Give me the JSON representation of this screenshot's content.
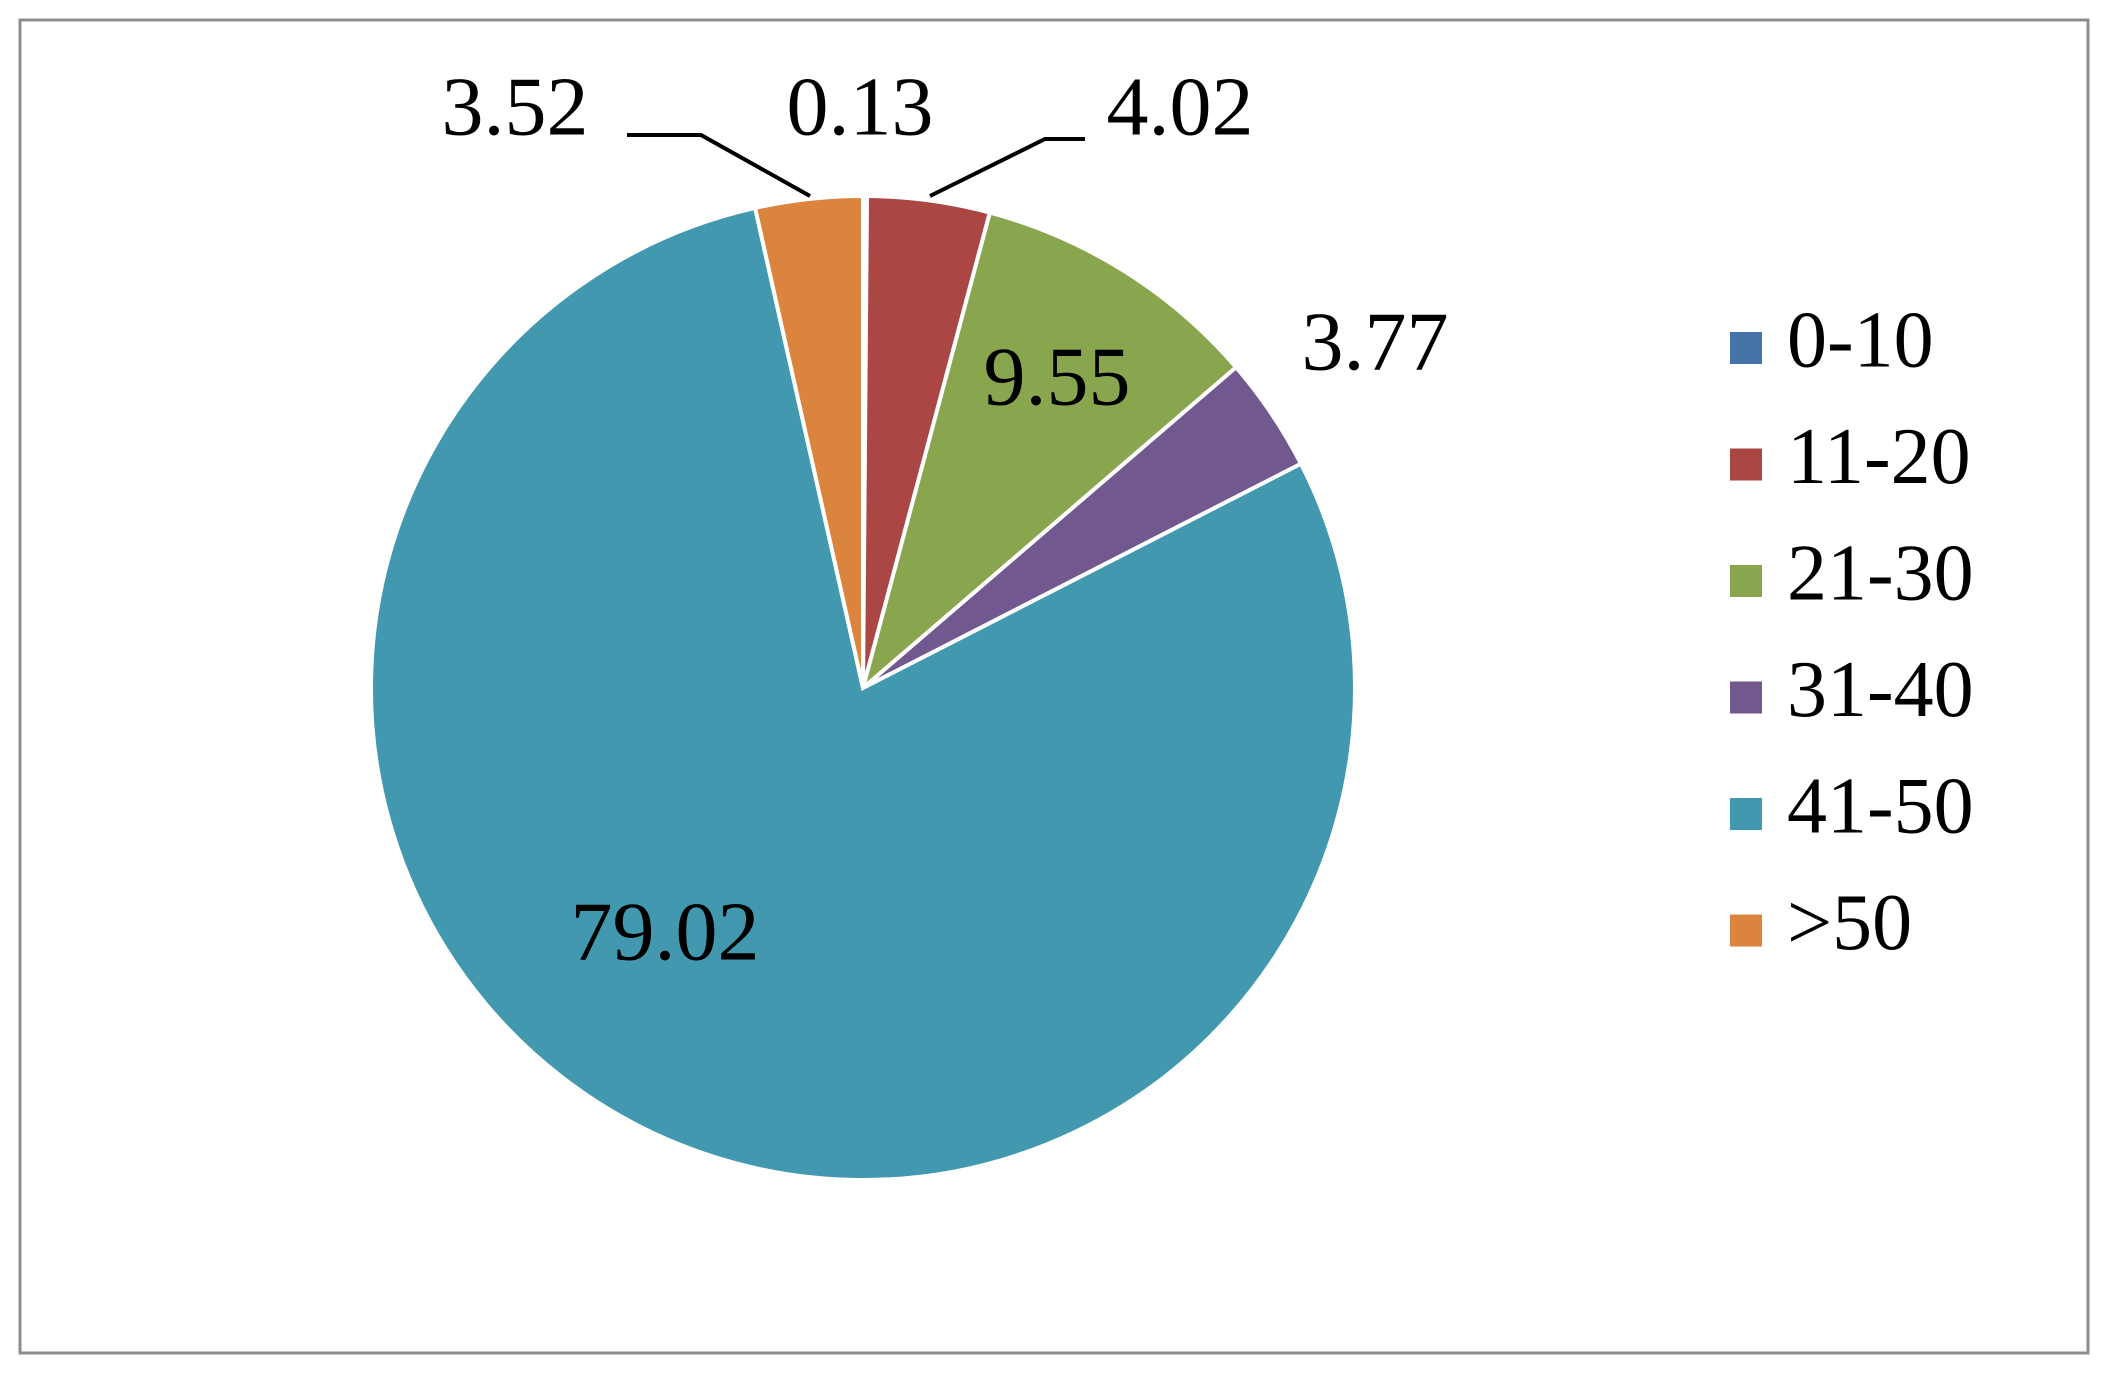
{
  "chart_data": {
    "type": "pie",
    "categories": [
      "0-10",
      "11-20",
      "21-30",
      "31-40",
      "41-50",
      ">50"
    ],
    "values": [
      0.13,
      4.02,
      9.55,
      3.77,
      79.02,
      3.52
    ],
    "colors": [
      "#4572a7",
      "#aa4643",
      "#89a54e",
      "#71588f",
      "#4198af",
      "#db843d"
    ],
    "legend": "right"
  }
}
